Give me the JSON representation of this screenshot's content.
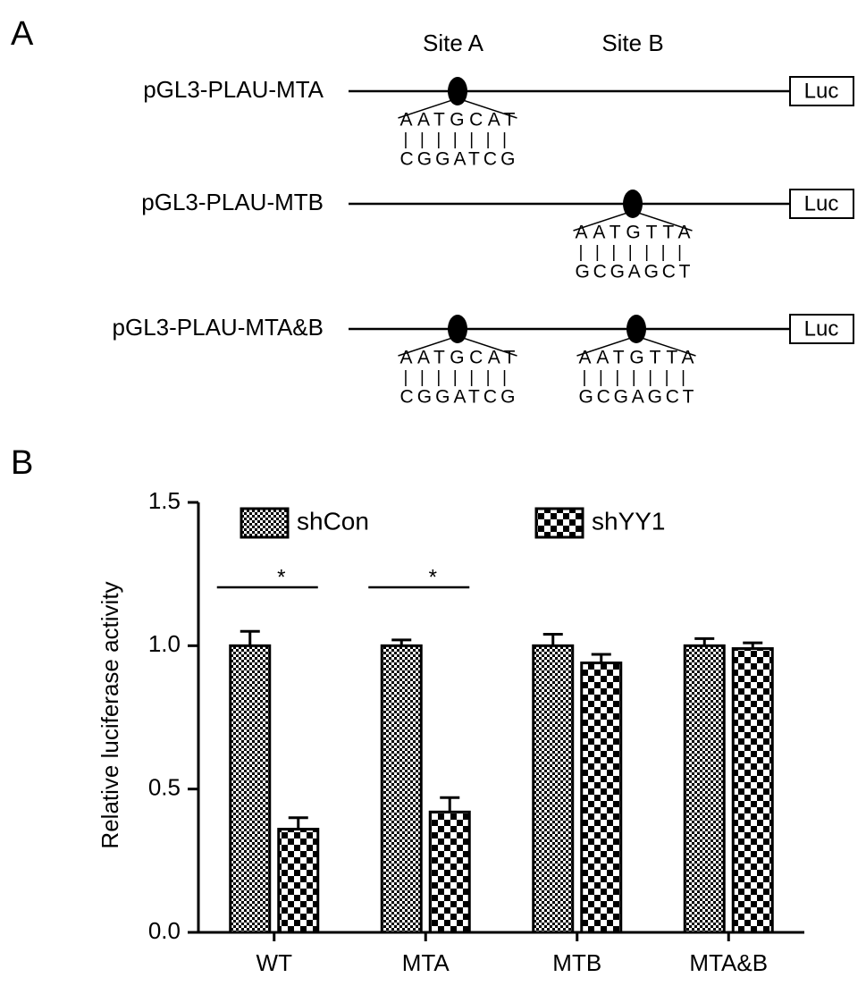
{
  "panel_labels": [
    "A",
    "B"
  ],
  "diagram": {
    "site_labels": [
      "Site A",
      "Site B"
    ],
    "constructs": [
      {
        "name": "pGL3-PLAU-MTA",
        "reporter": "Luc",
        "mutations": [
          {
            "site": "Site A",
            "original": "AATGCAT",
            "mutant": "CGGATCG"
          }
        ]
      },
      {
        "name": "pGL3-PLAU-MTB",
        "reporter": "Luc",
        "mutations": [
          {
            "site": "Site B",
            "original": "AATGTTA",
            "mutant": "GCGAGCT"
          }
        ]
      },
      {
        "name": "pGL3-PLAU-MTA&B",
        "reporter": "Luc",
        "mutations": [
          {
            "site": "Site A",
            "original": "AATGCAT",
            "mutant": "CGGATCG"
          },
          {
            "site": "Site B",
            "original": "AATGTTA",
            "mutant": "GCGAGCT"
          }
        ]
      }
    ]
  },
  "chart_data": {
    "type": "bar",
    "ylabel": "Relative luciferase activity",
    "categories": [
      "WT",
      "MTA",
      "MTB",
      "MTA&B"
    ],
    "series": [
      {
        "name": "shCon",
        "color": "#000000",
        "pattern": "fine",
        "values": [
          1.0,
          1.0,
          1.0,
          1.0
        ],
        "errors": [
          0.05,
          0.02,
          0.04,
          0.025
        ]
      },
      {
        "name": "shYY1",
        "color": "#000000",
        "pattern": "coarse",
        "values": [
          0.36,
          0.42,
          0.94,
          0.99
        ],
        "errors": [
          0.04,
          0.05,
          0.03,
          0.02
        ]
      }
    ],
    "ylim": [
      0,
      1.5
    ],
    "yticks": [
      {
        "value": 0,
        "label": "0.0"
      },
      {
        "value": 0.5,
        "label": "0.5"
      },
      {
        "value": 1,
        "label": "1.0"
      },
      {
        "value": 1.5,
        "label": "1.5"
      }
    ],
    "annotations": [
      {
        "text": "*",
        "category": "WT"
      },
      {
        "text": "*",
        "category": "MTA"
      }
    ]
  }
}
